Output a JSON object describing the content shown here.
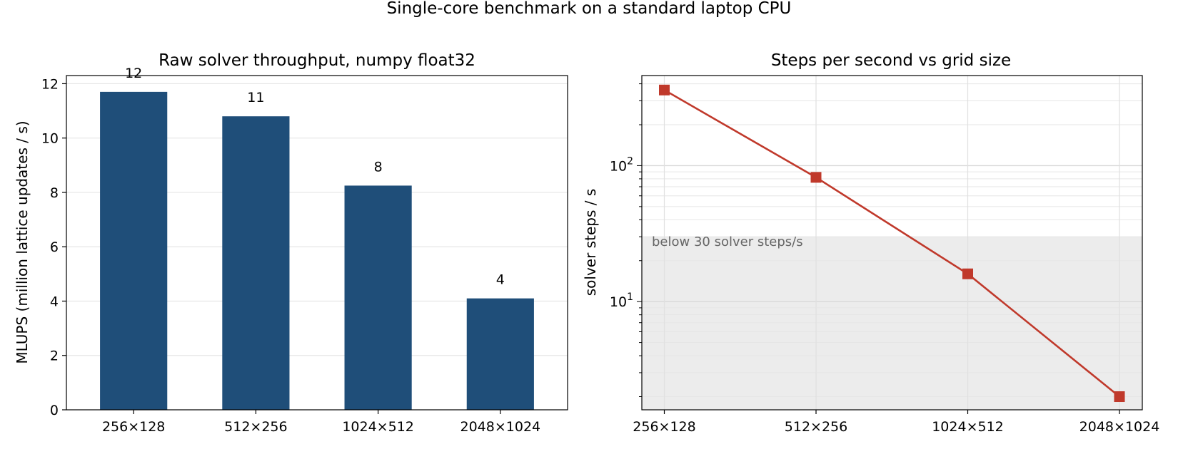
{
  "figure": {
    "suptitle": "Single-core benchmark on a standard laptop CPU"
  },
  "colors": {
    "bar": "#1f4e79",
    "line": "#c0392b",
    "band": "#ececec",
    "grid": "#e6e6e6"
  },
  "chart_data": [
    {
      "type": "bar",
      "title": "Raw solver throughput, numpy float32",
      "ylabel": "MLUPS (million lattice updates / s)",
      "categories": [
        "256×128",
        "512×256",
        "1024×512",
        "2048×1024"
      ],
      "values": [
        11.7,
        10.8,
        8.25,
        4.1
      ],
      "data_labels": [
        "12",
        "11",
        "8",
        "4"
      ],
      "ylim": [
        0,
        12.3
      ],
      "yticks": [
        0,
        2,
        4,
        6,
        8,
        10,
        12
      ],
      "grid": "y"
    },
    {
      "type": "line",
      "title": "Steps per second vs grid size",
      "ylabel": "solver steps / s",
      "yscale": "log",
      "categories": [
        "256×128",
        "512×256",
        "1024×512",
        "2048×1024"
      ],
      "values": [
        360,
        82,
        16,
        2
      ],
      "marker": "square",
      "ylim": [
        1.6,
        460
      ],
      "yticks": [
        {
          "value": 10,
          "base": "10",
          "exp": "1"
        },
        {
          "value": 100,
          "base": "10",
          "exp": "2"
        }
      ],
      "grid": "both",
      "band": {
        "from": 1.6,
        "to": 30,
        "label": "below 30 solver steps/s"
      }
    }
  ]
}
